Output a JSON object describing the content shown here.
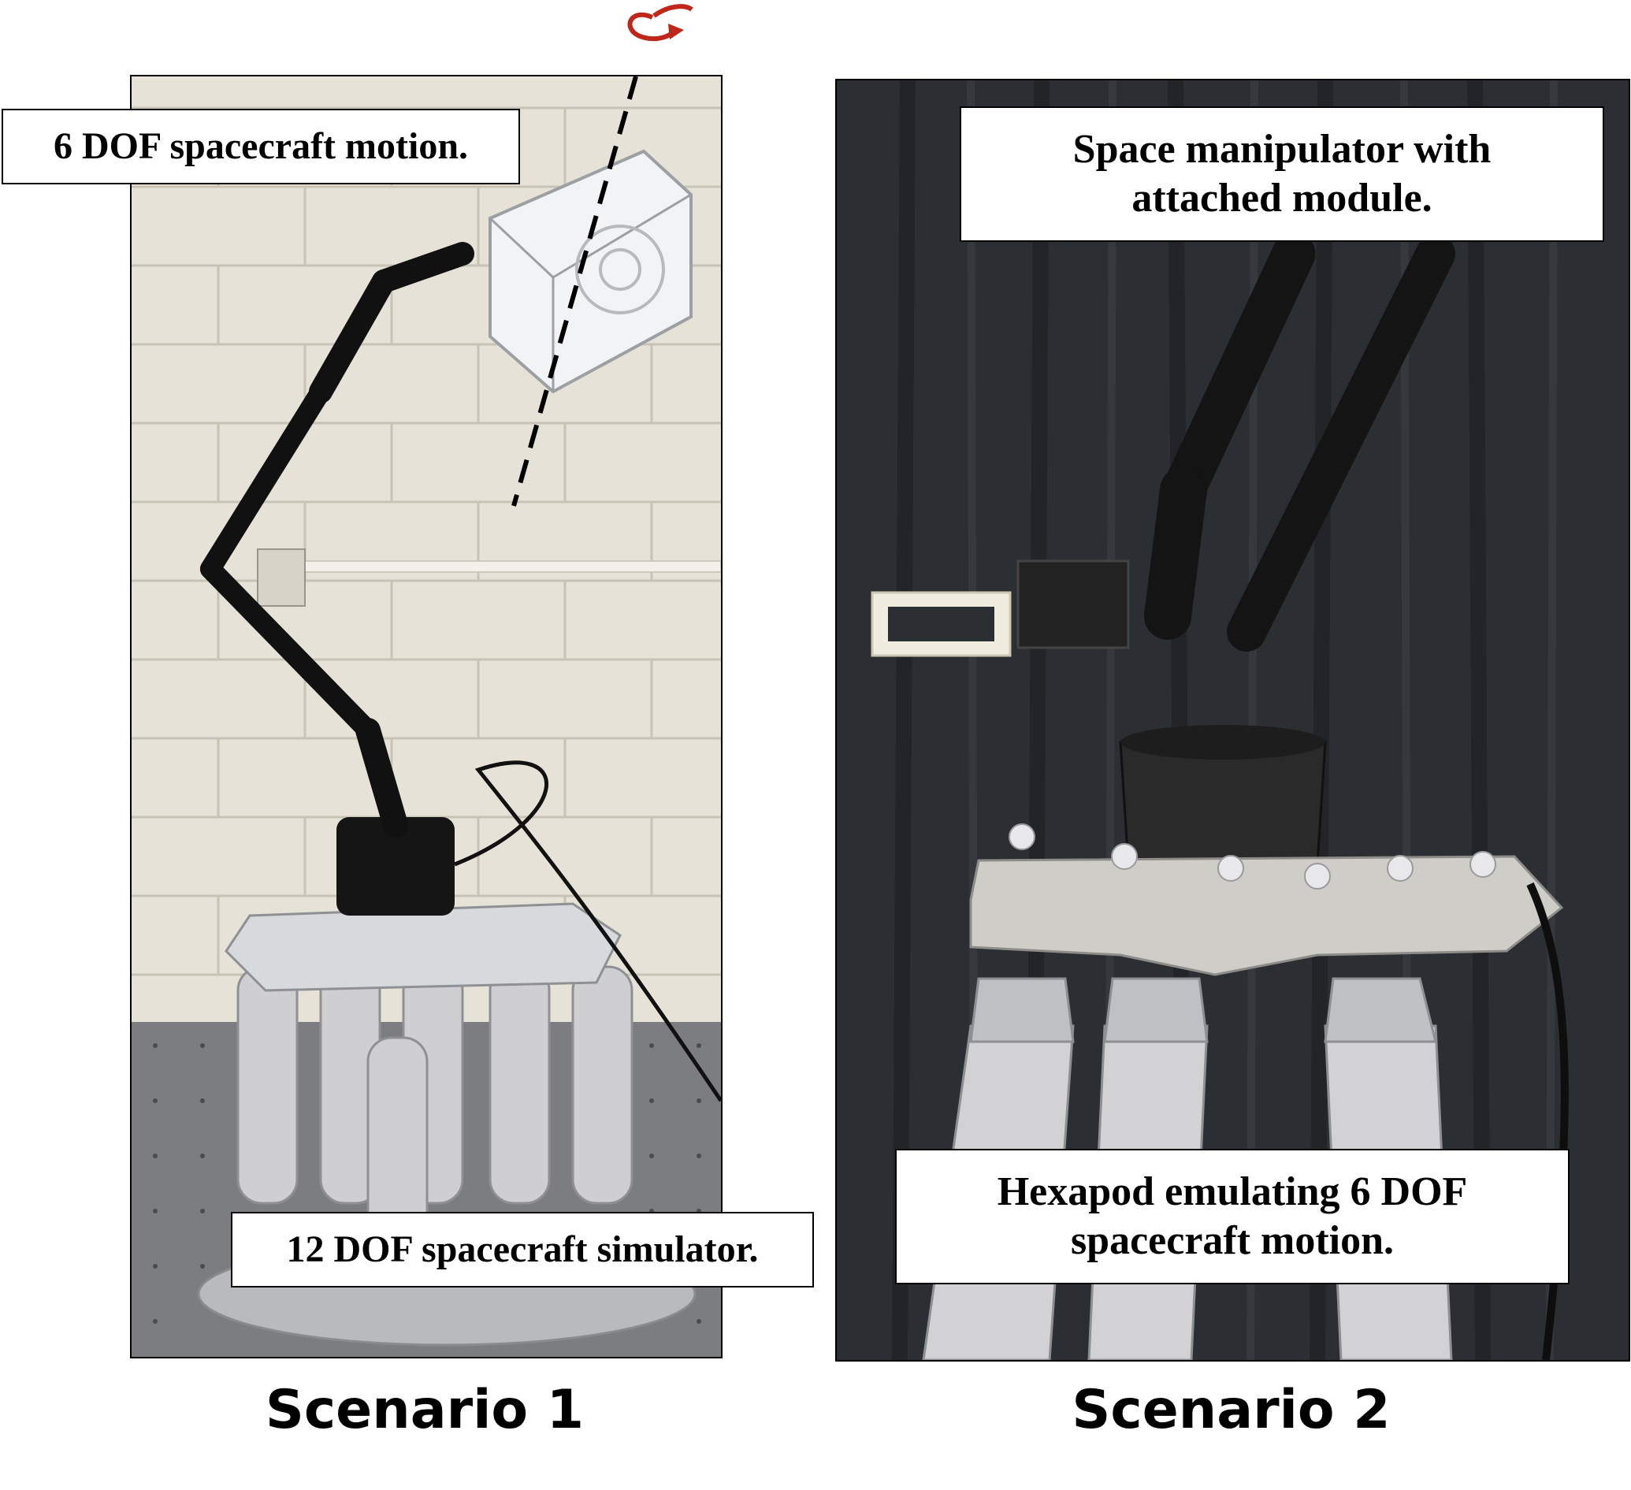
{
  "scenario1": {
    "caption": "Scenario 1",
    "labels": {
      "top": "6 DOF spacecraft motion.",
      "bottom": "12 DOF spacecraft simulator."
    }
  },
  "scenario2": {
    "caption": "Scenario 2",
    "labels": {
      "top_line1": "Space manipulator with",
      "top_line2": "attached module.",
      "bottom_line1": "Hexapod emulating 6 DOF",
      "bottom_line2": "spacecraft motion."
    }
  },
  "colors": {
    "rotation_arrow": "#c0271b",
    "axis_line": "#000000",
    "wall": "#e6e1d6",
    "curtain": "#2b2e32"
  }
}
